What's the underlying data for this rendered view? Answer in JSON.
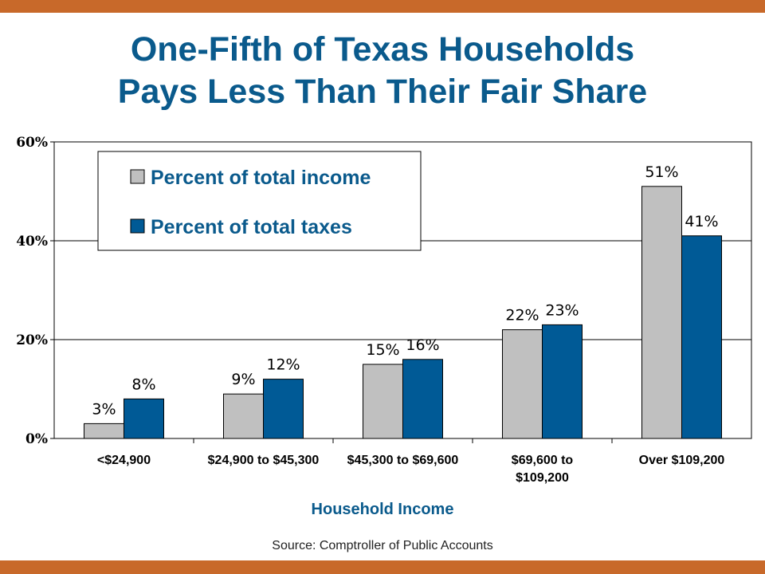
{
  "title": {
    "line1": "One-Fifth of Texas Households",
    "line2": "Pays Less Than Their Fair Share"
  },
  "source": "Source: Comptroller of Public Accounts",
  "colors": {
    "accent_bar": "#c8692a",
    "title": "#0a5a8c",
    "income": "#c0c0c0",
    "taxes": "#005a96"
  },
  "chart_data": {
    "type": "bar",
    "title": "One-Fifth of Texas Households Pays Less Than Their Fair Share",
    "xlabel": "Household Income",
    "ylabel": "",
    "ylim": [
      0,
      60
    ],
    "yticks": [
      0,
      20,
      40,
      60
    ],
    "ytick_labels": [
      "0%",
      "20%",
      "40%",
      "60%"
    ],
    "grid": true,
    "legend_position": "top-left",
    "categories": [
      "<$24,900",
      "$24,900 to $45,300",
      "$45,300 to $69,600",
      "$69,600 to\n$109,200",
      "Over $109,200"
    ],
    "series": [
      {
        "name": "Percent of total income",
        "color": "#c0c0c0",
        "values": [
          3,
          9,
          15,
          22,
          51
        ],
        "labels": [
          "3%",
          "9%",
          "15%",
          "22%",
          "51%"
        ]
      },
      {
        "name": "Percent of total taxes",
        "color": "#005a96",
        "values": [
          8,
          12,
          16,
          23,
          41
        ],
        "labels": [
          "8%",
          "12%",
          "16%",
          "23%",
          "41%"
        ]
      }
    ]
  }
}
